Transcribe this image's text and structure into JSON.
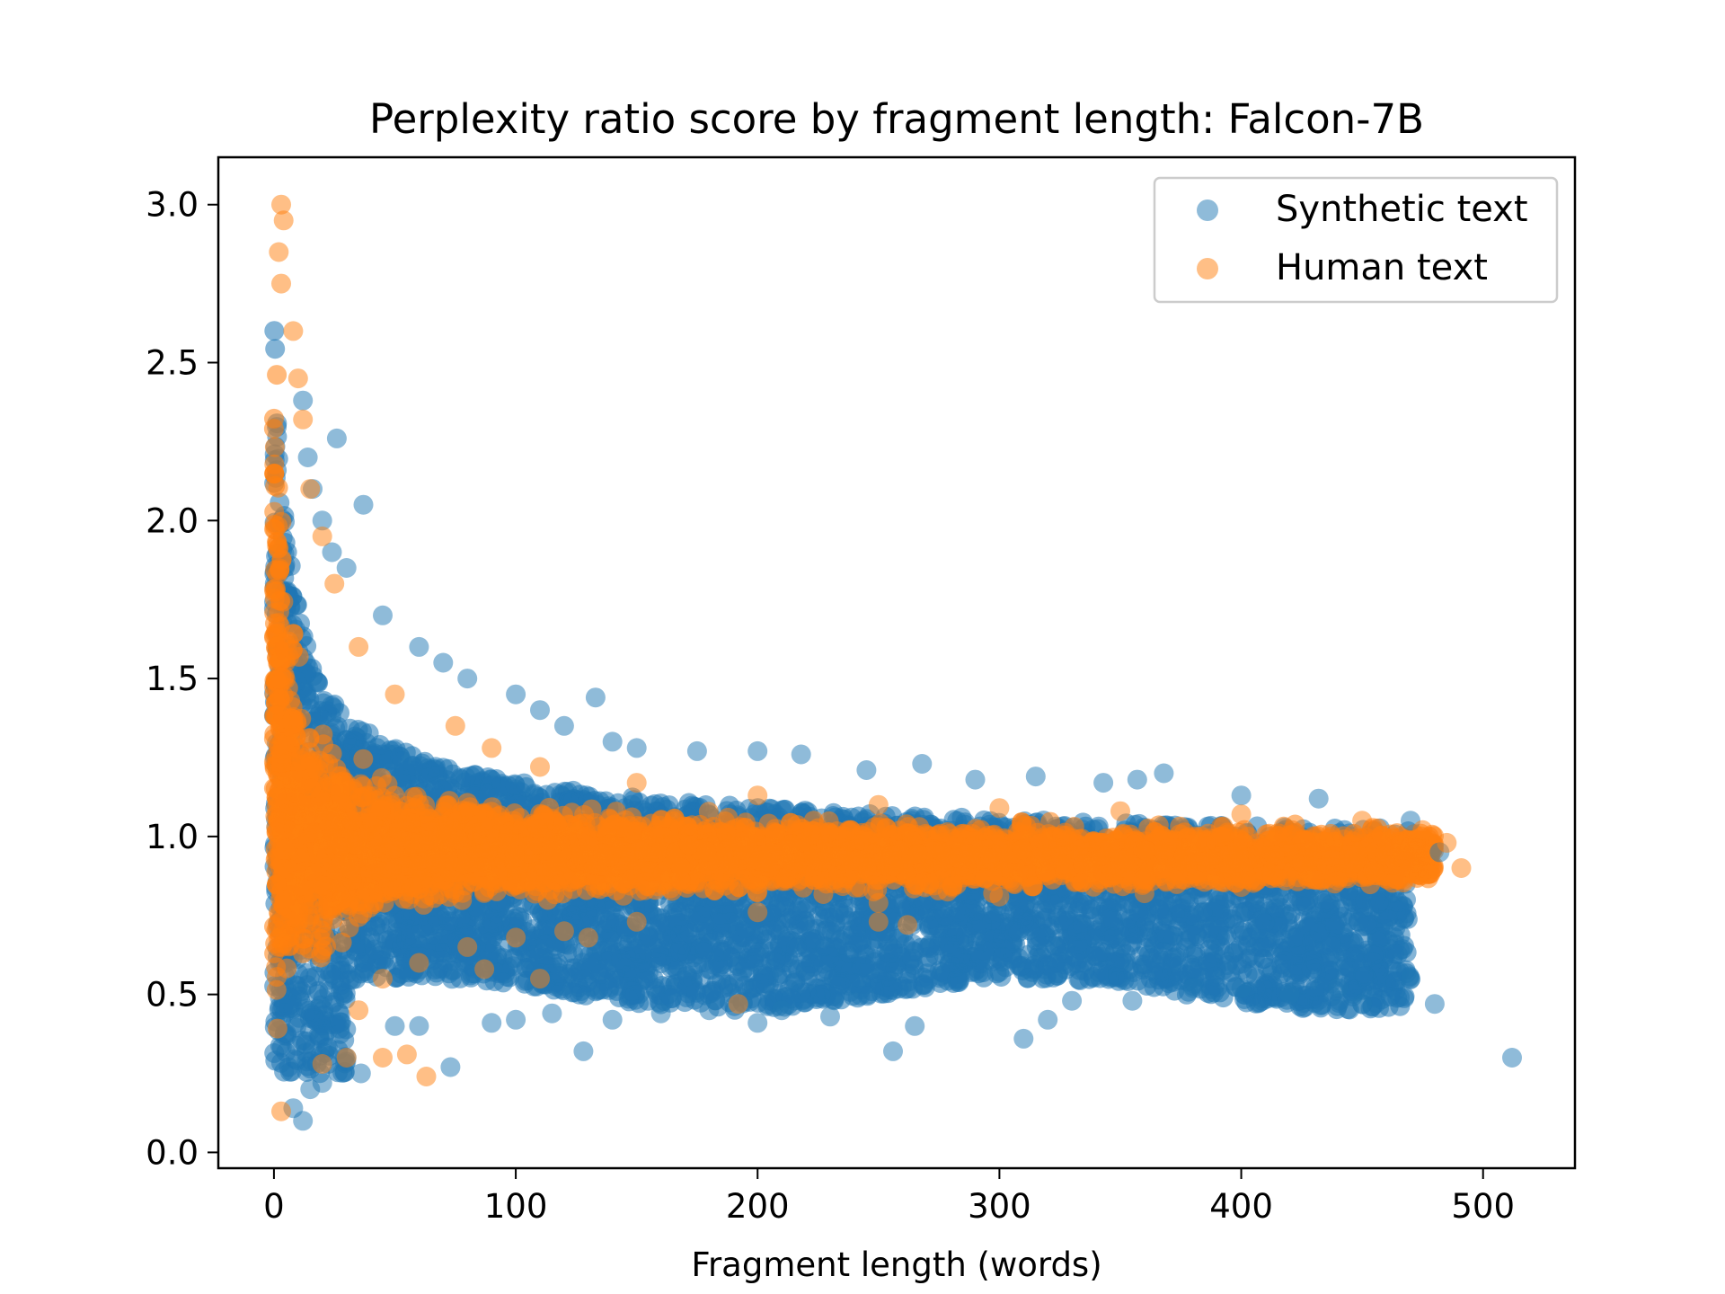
{
  "chart_data": {
    "type": "scatter",
    "title": "Perplexity ratio score by fragment length: Falcon-7B",
    "xlabel": "Fragment length (words)",
    "ylabel": "",
    "xlim": [
      -23,
      538
    ],
    "ylim": [
      -0.05,
      3.15
    ],
    "xticks": [
      0,
      100,
      200,
      300,
      400,
      500
    ],
    "yticks": [
      0.0,
      0.5,
      1.0,
      1.5,
      2.0,
      2.5,
      3.0
    ],
    "xtick_labels": [
      "0",
      "100",
      "200",
      "300",
      "400",
      "500"
    ],
    "ytick_labels": [
      "0.0",
      "0.5",
      "1.0",
      "1.5",
      "2.0",
      "2.5",
      "3.0"
    ],
    "legend_position": "top-right",
    "grid": false,
    "series": [
      {
        "name": "Synthetic text",
        "color": "#1f77b4",
        "points": [
          [
            12,
            2.38
          ],
          [
            26,
            2.26
          ],
          [
            37,
            2.05
          ],
          [
            14,
            2.2
          ],
          [
            16,
            2.1
          ],
          [
            20,
            2.0
          ],
          [
            24,
            1.9
          ],
          [
            30,
            1.85
          ],
          [
            45,
            1.7
          ],
          [
            60,
            1.6
          ],
          [
            70,
            1.55
          ],
          [
            80,
            1.5
          ],
          [
            100,
            1.45
          ],
          [
            133,
            1.44
          ],
          [
            110,
            1.4
          ],
          [
            120,
            1.35
          ],
          [
            140,
            1.3
          ],
          [
            150,
            1.28
          ],
          [
            175,
            1.27
          ],
          [
            200,
            1.27
          ],
          [
            218,
            1.26
          ],
          [
            245,
            1.21
          ],
          [
            268,
            1.23
          ],
          [
            290,
            1.18
          ],
          [
            315,
            1.19
          ],
          [
            343,
            1.17
          ],
          [
            357,
            1.18
          ],
          [
            368,
            1.2
          ],
          [
            400,
            1.13
          ],
          [
            432,
            1.12
          ],
          [
            470,
            1.05
          ],
          [
            482,
            0.95
          ],
          [
            470,
            0.55
          ],
          [
            480,
            0.47
          ],
          [
            450,
            0.47
          ],
          [
            512,
            0.3
          ],
          [
            440,
            0.52
          ],
          [
            420,
            0.5
          ],
          [
            400,
            0.52
          ],
          [
            380,
            0.52
          ],
          [
            355,
            0.48
          ],
          [
            330,
            0.48
          ],
          [
            320,
            0.42
          ],
          [
            310,
            0.36
          ],
          [
            265,
            0.4
          ],
          [
            256,
            0.32
          ],
          [
            230,
            0.43
          ],
          [
            210,
            0.45
          ],
          [
            200,
            0.41
          ],
          [
            180,
            0.45
          ],
          [
            160,
            0.44
          ],
          [
            140,
            0.42
          ],
          [
            128,
            0.32
          ],
          [
            115,
            0.44
          ],
          [
            100,
            0.42
          ],
          [
            90,
            0.41
          ],
          [
            73,
            0.27
          ],
          [
            60,
            0.4
          ],
          [
            50,
            0.4
          ],
          [
            36,
            0.25
          ],
          [
            30,
            0.3
          ],
          [
            20,
            0.22
          ],
          [
            12,
            0.1
          ],
          [
            8,
            0.14
          ],
          [
            15,
            0.2
          ]
        ]
      },
      {
        "name": "Human text",
        "color": "#ff7f0e",
        "points": [
          [
            3,
            3.0
          ],
          [
            4,
            2.95
          ],
          [
            2,
            2.85
          ],
          [
            3,
            2.75
          ],
          [
            8,
            2.6
          ],
          [
            10,
            2.45
          ],
          [
            12,
            2.32
          ],
          [
            15,
            2.1
          ],
          [
            20,
            1.95
          ],
          [
            25,
            1.8
          ],
          [
            35,
            1.6
          ],
          [
            50,
            1.45
          ],
          [
            75,
            1.35
          ],
          [
            90,
            1.28
          ],
          [
            110,
            1.22
          ],
          [
            150,
            1.17
          ],
          [
            200,
            1.13
          ],
          [
            250,
            1.1
          ],
          [
            300,
            1.09
          ],
          [
            350,
            1.08
          ],
          [
            400,
            1.07
          ],
          [
            450,
            1.05
          ],
          [
            475,
            1.02
          ],
          [
            485,
            0.98
          ],
          [
            491,
            0.9
          ],
          [
            470,
            0.9
          ],
          [
            440,
            0.86
          ],
          [
            400,
            0.84
          ],
          [
            360,
            0.82
          ],
          [
            300,
            0.81
          ],
          [
            250,
            0.79
          ],
          [
            200,
            0.76
          ],
          [
            150,
            0.73
          ],
          [
            120,
            0.7
          ],
          [
            100,
            0.68
          ],
          [
            80,
            0.65
          ],
          [
            60,
            0.6
          ],
          [
            45,
            0.55
          ],
          [
            35,
            0.45
          ],
          [
            30,
            0.3
          ],
          [
            20,
            0.28
          ],
          [
            3,
            0.13
          ],
          [
            45,
            0.3
          ],
          [
            55,
            0.31
          ],
          [
            63,
            0.24
          ],
          [
            87,
            0.58
          ],
          [
            110,
            0.55
          ],
          [
            192,
            0.47
          ],
          [
            130,
            0.68
          ],
          [
            250,
            0.73
          ],
          [
            262,
            0.72
          ]
        ]
      }
    ]
  }
}
